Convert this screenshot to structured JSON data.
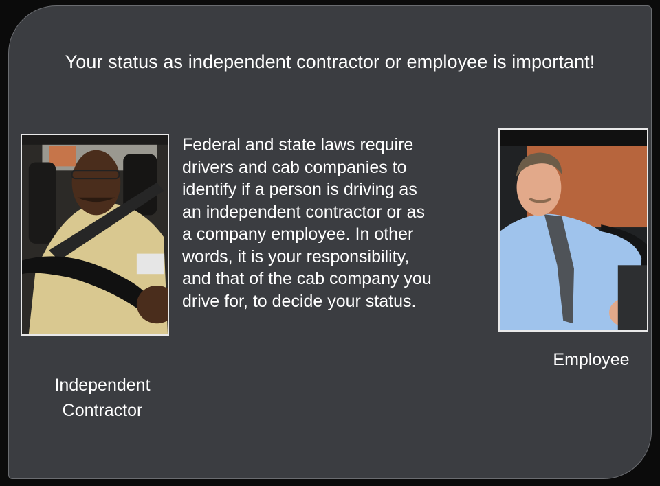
{
  "slide": {
    "title": "Your status as independent contractor or employee is important!",
    "body": "Federal and state laws require\ndrivers and cab companies to\nidentify if a person is driving as\nan independent contractor or as\na company employee. In other\nwords, it is your responsibility,\nand that of the cab company you\ndrive for, to decide your status.",
    "left_caption": "Independent\nContractor",
    "right_caption": "Employee"
  },
  "colors": {
    "slide_background": "#3b3d41",
    "page_background": "#0b0b0b",
    "text": "#ffffff",
    "photo_border": "#e9e9e9"
  },
  "images": {
    "left_photo": "driver-at-steering-wheel-photo",
    "right_photo": "employee-in-car-photo"
  }
}
